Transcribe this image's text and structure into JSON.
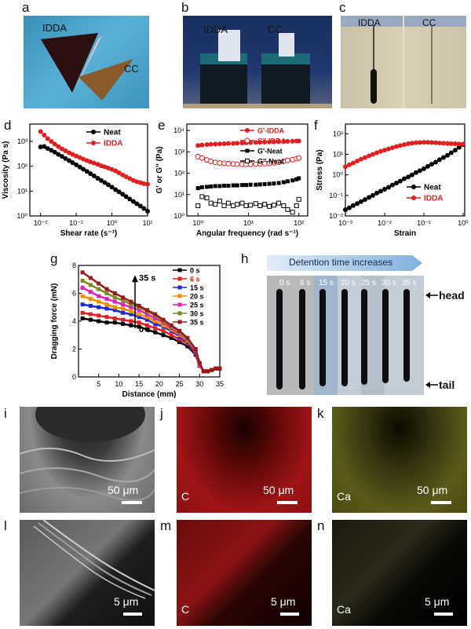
{
  "figure": {
    "panels": [
      "a",
      "b",
      "c",
      "d",
      "e",
      "f",
      "g",
      "h",
      "i",
      "j",
      "k",
      "l",
      "m",
      "n"
    ]
  },
  "photos": {
    "a": {
      "label_1": "IDDA",
      "label_2": "CC"
    },
    "b": {
      "label_1": "IDDA",
      "label_2": "CC"
    },
    "c": {
      "label_1": "IDDA",
      "label_2": "CC"
    },
    "h": {
      "banner": "Detention time increases",
      "times": [
        "0 s",
        "6 s",
        "15 s",
        "20 s",
        "25 s",
        "30 s",
        "35 s"
      ],
      "head": "head",
      "tail": "tail"
    }
  },
  "micrographs": {
    "i": {
      "element": "",
      "scale": "50 μm"
    },
    "j": {
      "element": "C",
      "scale": "50 μm",
      "color": "#d11a1a"
    },
    "k": {
      "element": "Ca",
      "scale": "50 μm",
      "color": "#c8c23a"
    },
    "l": {
      "element": "",
      "scale": "5 μm"
    },
    "m": {
      "element": "C",
      "scale": "5 μm",
      "color": "#d11a1a"
    },
    "n": {
      "element": "Ca",
      "scale": "5 μm",
      "color": "#e6e2a8"
    }
  },
  "chart_data": [
    {
      "id": "d",
      "type": "line",
      "xlabel": "Shear rate (s⁻¹)",
      "ylabel": "Viscosity (Pa s)",
      "xscale": "log",
      "yscale": "log",
      "xlim": [
        0.005,
        10
      ],
      "ylim": [
        1,
        5000
      ],
      "xticks": [
        0.01,
        0.1,
        1,
        10
      ],
      "xticklabels": [
        "10⁻²",
        "10⁻¹",
        "10⁰",
        "10¹"
      ],
      "yticks": [
        1,
        10,
        100,
        1000
      ],
      "yticklabels": [
        "10⁰",
        "10¹",
        "10²",
        "10³"
      ],
      "legend": "top-right",
      "series": [
        {
          "name": "Neat",
          "color": "#000000",
          "x": [
            0.01,
            0.0126,
            0.0158,
            0.02,
            0.025,
            0.0316,
            0.04,
            0.05,
            0.063,
            0.079,
            0.1,
            0.126,
            0.158,
            0.2,
            0.25,
            0.316,
            0.4,
            0.5,
            0.63,
            0.79,
            1,
            1.26,
            1.58,
            2,
            2.5,
            3.16,
            4,
            5,
            6.3,
            7.9,
            10
          ],
          "y": [
            600,
            630,
            520,
            440,
            370,
            300,
            250,
            205,
            170,
            140,
            115,
            93,
            76,
            62,
            50,
            41,
            33,
            27,
            22,
            18,
            14.5,
            11.5,
            9.3,
            7.5,
            6,
            4.8,
            3.8,
            3.1,
            2.5,
            2,
            1.55
          ]
        },
        {
          "name": "IDDA",
          "color": "#e02020",
          "x": [
            0.01,
            0.0126,
            0.0158,
            0.02,
            0.025,
            0.0316,
            0.04,
            0.05,
            0.063,
            0.079,
            0.1,
            0.126,
            0.158,
            0.2,
            0.25,
            0.316,
            0.4,
            0.5,
            0.63,
            0.79,
            1,
            1.26,
            1.58,
            2,
            2.5,
            3.16,
            4,
            5,
            6.3,
            7.9,
            10
          ],
          "y": [
            2500,
            1800,
            1300,
            1000,
            780,
            620,
            500,
            420,
            350,
            300,
            260,
            225,
            195,
            170,
            150,
            135,
            120,
            105,
            95,
            85,
            75,
            65,
            55,
            45,
            38,
            32,
            27,
            24,
            22,
            20,
            19
          ]
        }
      ]
    },
    {
      "id": "e",
      "type": "line",
      "xlabel": "Angular frequency (rad s⁻¹)",
      "ylabel": "G' or G'' (Pa)",
      "xscale": "log",
      "yscale": "log",
      "xlim": [
        0.6,
        150
      ],
      "ylim": [
        1,
        20000
      ],
      "xticks": [
        1,
        10,
        100
      ],
      "xticklabels": [
        "10⁰",
        "10¹",
        "10²"
      ],
      "yticks": [
        1,
        10,
        100,
        1000,
        10000
      ],
      "yticklabels": [
        "10⁰",
        "10¹",
        "10²",
        "10³",
        "10⁴"
      ],
      "series": [
        {
          "name": "G'-IDDA",
          "color": "#e02020",
          "marker": "filled-circle",
          "x": [
            1,
            1.2,
            1.5,
            1.8,
            2.2,
            2.7,
            3.3,
            4,
            5,
            6,
            7.5,
            9,
            11,
            14,
            17,
            21,
            26,
            32,
            40,
            50,
            60,
            75,
            90,
            100
          ],
          "y": [
            2000,
            2100,
            2200,
            2250,
            2300,
            2350,
            2400,
            2450,
            2500,
            2550,
            2600,
            2650,
            2700,
            2750,
            2800,
            2850,
            2900,
            2950,
            3000,
            3050,
            3100,
            3150,
            3200,
            3250
          ]
        },
        {
          "name": "G''-IDDA",
          "color": "#e02020",
          "marker": "open-circle",
          "x": [
            1,
            1.2,
            1.5,
            1.8,
            2.2,
            2.7,
            3.3,
            4,
            5,
            6,
            7.5,
            9,
            11,
            14,
            17,
            21,
            26,
            32,
            40,
            50,
            60,
            75,
            90,
            100
          ],
          "y": [
            600,
            520,
            420,
            360,
            320,
            300,
            290,
            280,
            270,
            265,
            260,
            260,
            262,
            265,
            270,
            280,
            290,
            310,
            330,
            360,
            400,
            440,
            480,
            520
          ]
        },
        {
          "name": "G'-Neat",
          "color": "#000000",
          "marker": "filled-square",
          "x": [
            1,
            1.2,
            1.5,
            1.8,
            2.2,
            2.7,
            3.3,
            4,
            5,
            6,
            7.5,
            9,
            11,
            14,
            17,
            21,
            26,
            32,
            40,
            50,
            60,
            75,
            90,
            100
          ],
          "y": [
            20,
            22,
            23,
            24,
            25,
            25,
            26,
            26,
            27,
            27,
            28,
            28,
            29,
            29,
            30,
            31,
            32,
            33,
            35,
            38,
            42,
            46,
            52,
            58
          ]
        },
        {
          "name": "G''-Neat",
          "color": "#000000",
          "marker": "open-square",
          "x": [
            1,
            1.2,
            1.5,
            1.8,
            2.2,
            2.7,
            3.3,
            4,
            5,
            6,
            7.5,
            9,
            11,
            14,
            17,
            21,
            26,
            32,
            40,
            50,
            60,
            75,
            90,
            100
          ],
          "y": [
            3,
            8,
            7,
            4,
            3.5,
            5,
            3,
            4,
            3,
            3.5,
            4,
            3,
            3.2,
            3.8,
            3,
            3.5,
            2.8,
            3.2,
            4,
            3,
            2,
            1.5,
            3,
            6
          ]
        }
      ]
    },
    {
      "id": "f",
      "type": "line",
      "xlabel": "Strain",
      "ylabel": "Stress (Pa)",
      "xscale": "log",
      "yscale": "log",
      "xlim": [
        0.001,
        1.1
      ],
      "ylim": [
        0.01,
        300
      ],
      "xticks": [
        0.001,
        0.01,
        0.1,
        1
      ],
      "xticklabels": [
        "10⁻³",
        "10⁻²",
        "10⁻¹",
        "10⁰"
      ],
      "yticks": [
        0.01,
        0.1,
        1,
        10,
        100
      ],
      "yticklabels": [
        "10⁻²",
        "10⁻¹",
        "10⁰",
        "10¹",
        "10²"
      ],
      "legend": "bottom-right",
      "series": [
        {
          "name": "Neat",
          "color": "#000000",
          "x": [
            0.001,
            0.00126,
            0.00158,
            0.002,
            0.0025,
            0.00316,
            0.004,
            0.005,
            0.0063,
            0.0079,
            0.01,
            0.0126,
            0.0158,
            0.02,
            0.025,
            0.0316,
            0.04,
            0.05,
            0.063,
            0.079,
            0.1,
            0.126,
            0.158,
            0.2,
            0.25,
            0.316,
            0.4,
            0.5,
            0.63,
            0.79,
            1
          ],
          "y": [
            0.02,
            0.025,
            0.032,
            0.04,
            0.05,
            0.063,
            0.08,
            0.1,
            0.13,
            0.16,
            0.2,
            0.25,
            0.32,
            0.4,
            0.5,
            0.65,
            0.8,
            1.0,
            1.3,
            1.6,
            2.0,
            2.6,
            3.3,
            4.2,
            5.5,
            7,
            9,
            12,
            16,
            22,
            30
          ]
        },
        {
          "name": "IDDA",
          "color": "#e02020",
          "x": [
            0.001,
            0.00126,
            0.00158,
            0.002,
            0.0025,
            0.00316,
            0.004,
            0.005,
            0.0063,
            0.0079,
            0.01,
            0.0126,
            0.0158,
            0.02,
            0.025,
            0.0316,
            0.04,
            0.05,
            0.063,
            0.079,
            0.1,
            0.126,
            0.158,
            0.2,
            0.25,
            0.316,
            0.4,
            0.5,
            0.63,
            0.79,
            1
          ],
          "y": [
            2.5,
            3.1,
            3.8,
            4.7,
            5.8,
            7,
            8.5,
            10,
            12,
            14,
            16,
            18.5,
            21,
            24,
            27,
            30,
            33,
            35,
            37,
            38,
            38.5,
            38.5,
            38,
            37,
            36,
            35,
            34,
            33,
            33,
            32,
            32
          ]
        }
      ]
    },
    {
      "id": "g",
      "type": "line",
      "xlabel": "Distance (mm)",
      "ylabel": "Dragging force (mN)",
      "xlim": [
        0,
        35
      ],
      "ylim": [
        0,
        8
      ],
      "xticks": [
        5,
        10,
        15,
        20,
        25,
        30,
        35
      ],
      "yticks": [
        0,
        2,
        4,
        6,
        8
      ],
      "legend": "top-right",
      "annotation_top": "35 s",
      "annotation_bottom": "0 s",
      "series": [
        {
          "name": "0 s",
          "color": "#000000",
          "x": [
            1,
            3,
            5,
            7,
            9,
            11,
            13,
            15,
            17,
            19,
            21,
            23,
            25,
            27,
            29,
            30,
            31,
            32,
            33,
            34,
            35
          ],
          "y": [
            4.2,
            4.1,
            4.0,
            3.9,
            3.9,
            3.8,
            3.7,
            3.6,
            3.4,
            3.2,
            3.0,
            2.8,
            2.5,
            2.2,
            1.6,
            0.8,
            0.4,
            0.4,
            0.5,
            0.6,
            0.6
          ]
        },
        {
          "name": "6 s",
          "color": "#e02020",
          "x": [
            1,
            3,
            5,
            7,
            9,
            11,
            13,
            15,
            17,
            19,
            21,
            23,
            25,
            27,
            29,
            30,
            31,
            32,
            33,
            34,
            35
          ],
          "y": [
            4.6,
            4.5,
            4.4,
            4.3,
            4.2,
            4.1,
            4.0,
            3.9,
            3.7,
            3.5,
            3.3,
            3.0,
            2.7,
            2.4,
            1.7,
            0.8,
            0.4,
            0.4,
            0.5,
            0.6,
            0.6
          ]
        },
        {
          "name": "15 s",
          "color": "#1a2ad6",
          "x": [
            1,
            3,
            5,
            7,
            9,
            11,
            13,
            15,
            17,
            19,
            21,
            23,
            25,
            27,
            29,
            30,
            31,
            32,
            33,
            34,
            35
          ],
          "y": [
            5.2,
            5.1,
            5.0,
            4.9,
            4.8,
            4.6,
            4.5,
            4.3,
            4.1,
            3.8,
            3.6,
            3.3,
            2.9,
            2.5,
            1.8,
            0.9,
            0.4,
            0.4,
            0.5,
            0.6,
            0.6
          ]
        },
        {
          "name": "20 s",
          "color": "#f08c00",
          "x": [
            1,
            3,
            5,
            7,
            9,
            11,
            13,
            15,
            17,
            19,
            21,
            23,
            25,
            27,
            29,
            30,
            31,
            32,
            33,
            34,
            35
          ],
          "y": [
            5.8,
            5.6,
            5.4,
            5.2,
            5.0,
            4.9,
            4.7,
            4.5,
            4.3,
            4.0,
            3.7,
            3.4,
            3.0,
            2.6,
            1.9,
            0.9,
            0.4,
            0.4,
            0.5,
            0.6,
            0.6
          ]
        },
        {
          "name": "25 s",
          "color": "#e020c0",
          "x": [
            1,
            3,
            5,
            7,
            9,
            11,
            13,
            15,
            17,
            19,
            21,
            23,
            25,
            27,
            29,
            30,
            31,
            32,
            33,
            34,
            35
          ],
          "y": [
            6.4,
            6.1,
            5.8,
            5.6,
            5.4,
            5.2,
            5.0,
            4.8,
            4.5,
            4.2,
            3.9,
            3.5,
            3.1,
            2.7,
            1.9,
            0.9,
            0.4,
            0.4,
            0.5,
            0.6,
            0.6
          ]
        },
        {
          "name": "30 s",
          "color": "#7a8a20",
          "x": [
            1,
            3,
            5,
            7,
            9,
            11,
            13,
            15,
            17,
            19,
            21,
            23,
            25,
            27,
            29,
            30,
            31,
            32,
            33,
            34,
            35
          ],
          "y": [
            6.9,
            6.6,
            6.3,
            6.0,
            5.7,
            5.5,
            5.2,
            5.0,
            4.7,
            4.4,
            4.0,
            3.6,
            3.2,
            2.7,
            2.0,
            1.0,
            0.4,
            0.4,
            0.5,
            0.6,
            0.6
          ]
        },
        {
          "name": "35 s",
          "color": "#9a1a1a",
          "x": [
            1,
            3,
            5,
            7,
            9,
            11,
            13,
            15,
            17,
            19,
            21,
            23,
            25,
            27,
            29,
            30,
            31,
            32,
            33,
            34,
            35
          ],
          "y": [
            7.5,
            7.1,
            6.7,
            6.3,
            6.0,
            5.7,
            5.4,
            5.1,
            4.8,
            4.5,
            4.1,
            3.7,
            3.3,
            2.8,
            2.0,
            1.0,
            0.4,
            0.4,
            0.5,
            0.6,
            0.6
          ]
        }
      ]
    }
  ]
}
